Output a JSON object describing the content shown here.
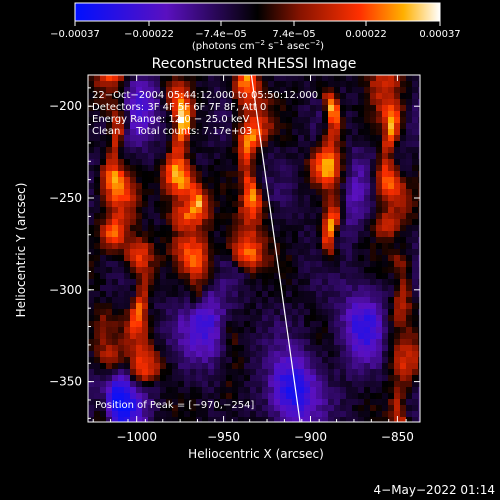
{
  "chart_data": {
    "type": "heatmap",
    "title": "Reconstructed RHESSI Image",
    "xlabel": "Heliocentric X (arcsec)",
    "ylabel": "Heliocentric Y (arcsec)",
    "x_ticks": [
      -1000,
      -950,
      -900,
      -850
    ],
    "y_ticks": [
      -200,
      -250,
      -300,
      -350
    ],
    "x_tick_labels": [
      "−1000",
      "−950",
      "−900",
      "−850"
    ],
    "y_tick_labels": [
      "−200",
      "−250",
      "−300",
      "−350"
    ],
    "xlim": [
      -1028,
      -837
    ],
    "ylim": [
      -372,
      -183
    ],
    "colorbar": {
      "tick_labels": [
        "−0.00037",
        "−0.00022",
        "−7.4e−05",
        "7.4e−05",
        "0.00022",
        "0.00037"
      ],
      "values": [
        -0.00037,
        -0.00022,
        -7.4e-05,
        7.4e-05,
        0.00022,
        0.00037
      ],
      "unit_main": "(photons cm",
      "unit_exp1": "−2",
      "unit_mid": " s",
      "unit_exp2": "−1",
      "unit_end": " asec",
      "unit_exp3": "−2",
      "unit_close": ")"
    },
    "annotations": {
      "time": "22−Oct−2004 05:44:12.000 to 05:50:12.000",
      "detectors": "Detectors: 3F 4F 5F 6F 7F 8F, Att 0",
      "energy": "Energy Range: 12.0 − 25.0 keV",
      "method": "Clean     Total counts: 7.17e+03",
      "peak": "Position of Peak = [−970,−254]"
    },
    "limb_line": {
      "x_top": -934,
      "y_top": -183,
      "x_bottom": -906,
      "y_bottom": -372
    },
    "bright_streaks": [
      {
        "x": -1012,
        "y_top": -183,
        "y_bottom": -268,
        "level": 0.85
      },
      {
        "x": -998,
        "y_top": -280,
        "y_bottom": -345,
        "level": 0.8
      },
      {
        "x": -975,
        "y_top": -195,
        "y_bottom": -255,
        "level": 0.95
      },
      {
        "x": -966,
        "y_top": -255,
        "y_bottom": -300,
        "level": 0.8
      },
      {
        "x": -935,
        "y_top": -183,
        "y_bottom": -280,
        "level": 0.85
      },
      {
        "x": -888,
        "y_top": -200,
        "y_bottom": -275,
        "level": 0.95
      },
      {
        "x": -855,
        "y_top": -190,
        "y_bottom": -260,
        "level": 0.85
      },
      {
        "x": -848,
        "y_top": -290,
        "y_bottom": -372,
        "level": 0.7
      },
      {
        "x": -1018,
        "y_top": -320,
        "y_bottom": -372,
        "level": 0.7
      },
      {
        "x": -945,
        "y_top": -320,
        "y_bottom": -372,
        "level": 0.55
      }
    ],
    "dark_regions": [
      {
        "x": -1000,
        "y": -200,
        "level": 0.2
      },
      {
        "x": -960,
        "y": -320,
        "level": 0.15
      },
      {
        "x": -870,
        "y": -320,
        "level": 0.15
      },
      {
        "x": -1010,
        "y": -360,
        "level": 0.05
      },
      {
        "x": -910,
        "y": -355,
        "level": 0.05
      },
      {
        "x": -880,
        "y": -245,
        "level": 0.2
      }
    ]
  },
  "footer": {
    "timestamp": "4−May−2022 01:14"
  }
}
